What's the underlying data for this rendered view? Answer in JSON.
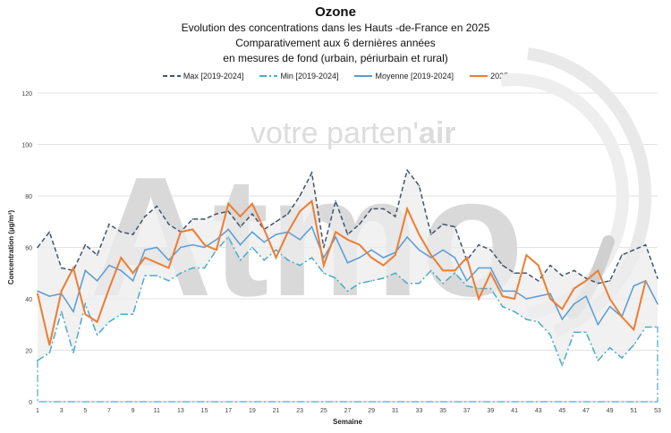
{
  "chart_data": {
    "type": "line",
    "title": "Ozone",
    "subtitles": [
      "Evolution des concentrations dans les Hauts -de-France en 2025",
      "Comparativement aux 6 dernières années",
      "en mesures de fond (urbain, périurbain et rural)"
    ],
    "xlabel": "Semaine",
    "ylabel": "Concentration (µg/m³)",
    "ylim": [
      0,
      120
    ],
    "yticks": [
      0,
      20,
      40,
      60,
      80,
      100,
      120
    ],
    "xlim": [
      1,
      53
    ],
    "xticks": [
      1,
      3,
      5,
      7,
      9,
      11,
      13,
      15,
      17,
      19,
      21,
      23,
      25,
      27,
      29,
      31,
      33,
      35,
      37,
      39,
      41,
      43,
      45,
      47,
      49,
      51,
      53
    ],
    "grid": "horizontal",
    "legend": "top",
    "series": [
      {
        "name": "Max [2019-2024]",
        "color": "#44546a",
        "style": "dashed",
        "values": [
          60,
          66,
          52,
          51,
          61,
          57,
          69,
          66,
          65,
          72,
          76,
          69,
          66,
          71,
          71,
          73,
          74,
          68,
          73,
          67,
          70,
          73,
          80,
          89,
          60,
          78,
          65,
          69,
          75,
          75,
          72,
          90,
          84,
          65,
          69,
          68,
          55,
          61,
          59,
          53,
          50,
          50,
          47,
          53,
          49,
          51,
          48,
          46,
          47,
          57,
          59,
          61,
          48
        ]
      },
      {
        "name": "Min [2019-2024]",
        "color": "#4bacc6",
        "style": "dashdot",
        "values": [
          16,
          19,
          35,
          19,
          38,
          26,
          31,
          34,
          34,
          49,
          49,
          47,
          50,
          52,
          52,
          59,
          64,
          55,
          60,
          55,
          59,
          55,
          53,
          56,
          50,
          48,
          43,
          46,
          47,
          48,
          50,
          46,
          46,
          51,
          46,
          50,
          45,
          44,
          44,
          37,
          35,
          32,
          31,
          26,
          14,
          27,
          27,
          16,
          21,
          17,
          22,
          29,
          29
        ]
      },
      {
        "name": "Moyenne [2019-2024]",
        "color": "#5b9bd5",
        "style": "solid",
        "values": [
          43,
          41,
          42,
          35,
          51,
          47,
          53,
          51,
          47,
          59,
          60,
          55,
          60,
          61,
          60,
          63,
          67,
          61,
          66,
          62,
          65,
          66,
          63,
          68,
          56,
          64,
          54,
          56,
          59,
          56,
          58,
          64,
          59,
          56,
          59,
          56,
          47,
          52,
          52,
          43,
          43,
          40,
          41,
          42,
          32,
          38,
          41,
          30,
          37,
          33,
          45,
          47,
          38
        ]
      },
      {
        "name": "2025",
        "color": "#ed7d31",
        "style": "solid",
        "values": [
          42,
          22,
          43,
          52,
          34,
          31,
          44,
          56,
          50,
          56,
          54,
          52,
          66,
          67,
          61,
          59,
          77,
          72,
          77,
          67,
          56,
          66,
          74,
          78,
          53,
          66,
          63,
          61,
          56,
          53,
          57,
          75,
          65,
          57,
          51,
          51,
          56,
          40,
          50,
          41,
          40,
          57,
          53,
          40,
          36,
          44,
          47,
          51,
          40,
          33,
          28,
          47,
          null
        ]
      }
    ],
    "band_color": "#ececec"
  },
  "watermark": {
    "logo": "Atmo",
    "tagline_a": "votre parten'",
    "tagline_b": "air"
  }
}
